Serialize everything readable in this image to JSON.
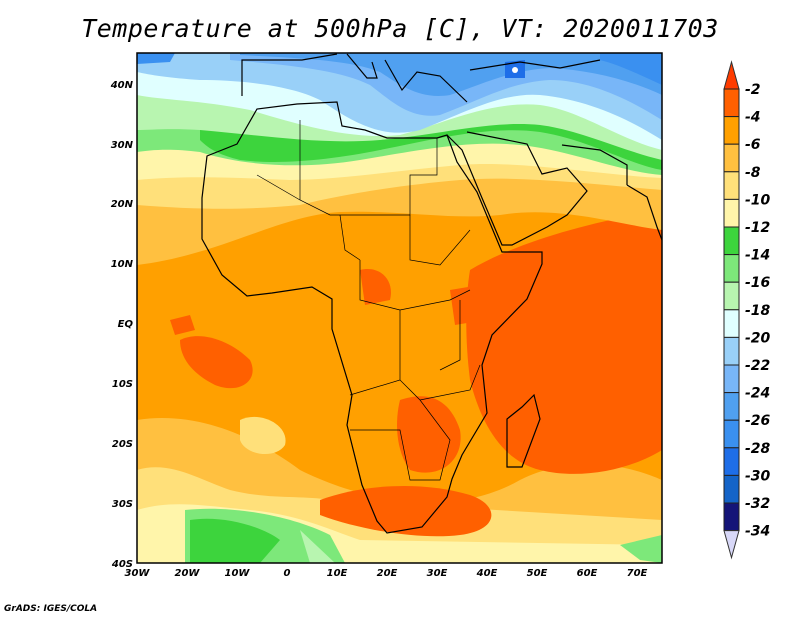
{
  "title": "Temperature at 500hPa [C], VT: 2020011703",
  "footer": "GrADS: IGES/COLA",
  "map": {
    "lon_range": [
      -30,
      75
    ],
    "lat_range": [
      -40,
      45
    ],
    "x_ticks": [
      "30W",
      "20W",
      "10W",
      "0",
      "10E",
      "20E",
      "30E",
      "40E",
      "50E",
      "60E",
      "70E"
    ],
    "y_ticks": [
      "40N",
      "30N",
      "20N",
      "10N",
      "EQ",
      "10S",
      "20S",
      "30S",
      "40S"
    ]
  },
  "colorbar": {
    "labels": [
      "-2",
      "-4",
      "-6",
      "-8",
      "-10",
      "-12",
      "-14",
      "-16",
      "-18",
      "-20",
      "-22",
      "-24",
      "-26",
      "-28",
      "-30",
      "-32",
      "-34"
    ],
    "colors": [
      "#ff6000",
      "#ffa000",
      "#ffc040",
      "#ffe07a",
      "#fff5aa",
      "#3dd43d",
      "#7de87a",
      "#b8f5b0",
      "#e0ffff",
      "#99d0f8",
      "#78b6f8",
      "#50a0f0",
      "#3a90f0",
      "#1e6ee8",
      "#1464c8",
      "#141478"
    ],
    "over_color": "#ff3c00",
    "under_color": "#d8d8f8"
  }
}
